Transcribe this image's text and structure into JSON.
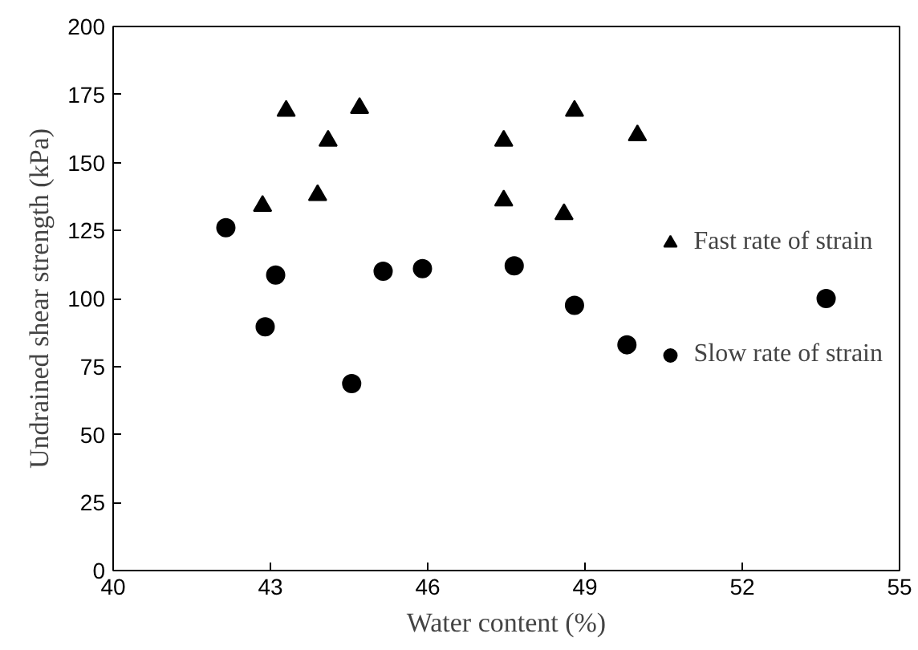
{
  "chart_data": {
    "type": "scatter",
    "xlabel": "Water content (%)",
    "ylabel": "Undrained shear strength (kPa)",
    "xlim": [
      40,
      55
    ],
    "xticks": [
      40,
      43,
      46,
      49,
      52,
      55
    ],
    "ylim": [
      0,
      200
    ],
    "yticks": [
      0,
      25,
      50,
      75,
      100,
      125,
      150,
      175,
      200
    ],
    "grid": false,
    "legend": "right",
    "series": [
      {
        "name": "Fast rate of strain",
        "color": "#000000",
        "marker": "triangle",
        "x": [
          42.85,
          43.3,
          43.9,
          44.1,
          44.7,
          47.45,
          47.45,
          48.8,
          48.6,
          50
        ],
        "values": [
          134,
          169,
          138,
          158,
          170,
          158,
          136,
          169,
          131,
          160
        ]
      },
      {
        "name": "Slow rate of strain",
        "color": "#000000",
        "marker": "circle",
        "x": [
          42.15,
          43.1,
          42.9,
          44.55,
          45.15,
          45.9,
          47.65,
          48.8,
          49.8,
          53.6
        ],
        "values": [
          126,
          108.6,
          89.6,
          68.7,
          110,
          111,
          112,
          97.5,
          83,
          100
        ]
      }
    ]
  }
}
